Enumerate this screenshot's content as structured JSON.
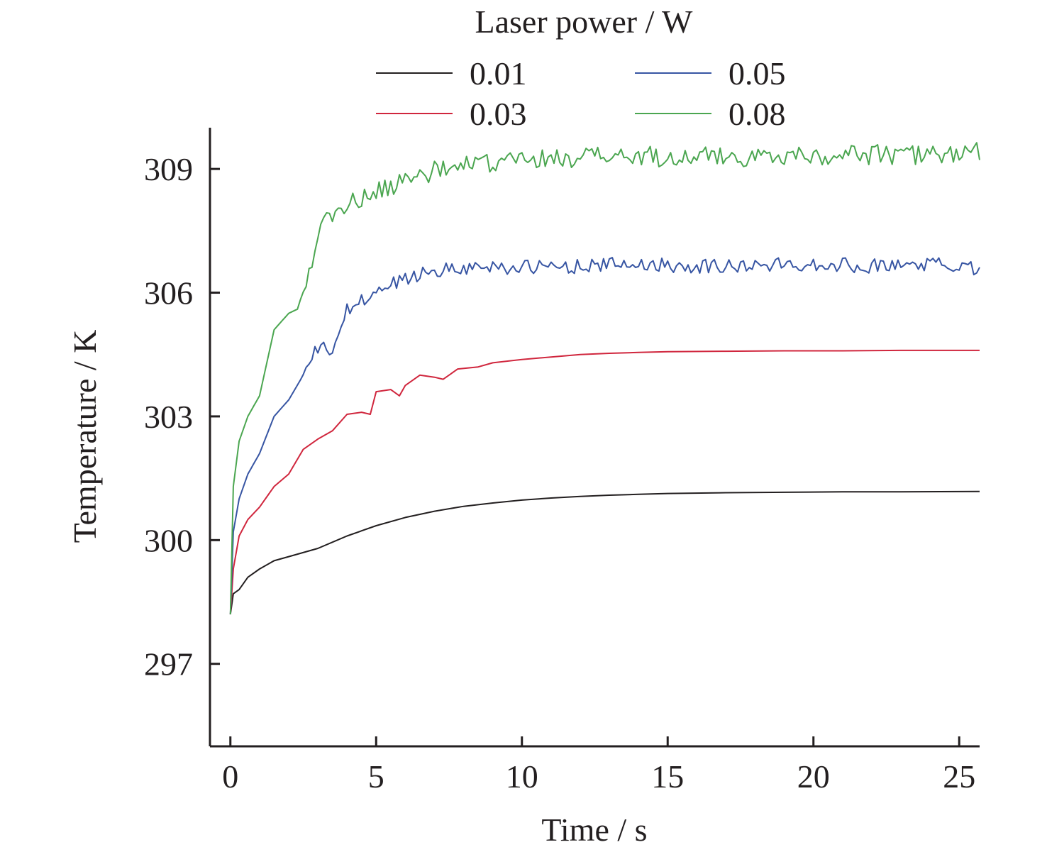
{
  "chart_data": {
    "type": "line",
    "xlabel": "Time / s",
    "ylabel": "Temperature / K",
    "xlim": [
      -0.7,
      25.7
    ],
    "ylim": [
      295,
      310
    ],
    "x_ticks": [
      0,
      5,
      10,
      15,
      20,
      25
    ],
    "x_tick_labels": [
      "0",
      "5",
      "10",
      "15",
      "20",
      "25"
    ],
    "y_ticks": [
      297,
      300,
      303,
      306,
      309
    ],
    "y_tick_labels": [
      "297",
      "300",
      "303",
      "306",
      "309"
    ],
    "grid": false,
    "legend": {
      "title": "Laser power / W",
      "placement": "top",
      "columns": 2
    },
    "series": [
      {
        "name": "0.01",
        "color": "#231f20",
        "points": [
          [
            0,
            298.2
          ],
          [
            0.1,
            298.7
          ],
          [
            0.3,
            298.8
          ],
          [
            0.6,
            299.1
          ],
          [
            1,
            299.3
          ],
          [
            1.5,
            299.5
          ],
          [
            2,
            299.6
          ],
          [
            3,
            299.8
          ],
          [
            4,
            300.1
          ],
          [
            5,
            300.35
          ],
          [
            6,
            300.55
          ],
          [
            7,
            300.7
          ],
          [
            8,
            300.82
          ],
          [
            9,
            300.9
          ],
          [
            10,
            300.97
          ],
          [
            11,
            301.02
          ],
          [
            12,
            301.06
          ],
          [
            13,
            301.09
          ],
          [
            14,
            301.11
          ],
          [
            15,
            301.13
          ],
          [
            17,
            301.15
          ],
          [
            19,
            301.16
          ],
          [
            21,
            301.17
          ],
          [
            23,
            301.17
          ],
          [
            25.7,
            301.18
          ]
        ]
      },
      {
        "name": "0.03",
        "color": "#d0263d",
        "points": [
          [
            0,
            298.2
          ],
          [
            0.1,
            299.3
          ],
          [
            0.3,
            300.1
          ],
          [
            0.6,
            300.5
          ],
          [
            1,
            300.8
          ],
          [
            1.5,
            301.3
          ],
          [
            2,
            301.6
          ],
          [
            2.5,
            302.2
          ],
          [
            3,
            302.45
          ],
          [
            3.5,
            302.65
          ],
          [
            4,
            303.05
          ],
          [
            4.5,
            303.1
          ],
          [
            4.8,
            303.05
          ],
          [
            5,
            303.6
          ],
          [
            5.5,
            303.65
          ],
          [
            5.8,
            303.5
          ],
          [
            6,
            303.75
          ],
          [
            6.5,
            304.0
          ],
          [
            7,
            303.95
          ],
          [
            7.3,
            303.9
          ],
          [
            7.8,
            304.15
          ],
          [
            8.5,
            304.2
          ],
          [
            9,
            304.3
          ],
          [
            10,
            304.38
          ],
          [
            11,
            304.44
          ],
          [
            12,
            304.5
          ],
          [
            13,
            304.53
          ],
          [
            14,
            304.55
          ],
          [
            15,
            304.57
          ],
          [
            17,
            304.58
          ],
          [
            19,
            304.59
          ],
          [
            21,
            304.59
          ],
          [
            23,
            304.6
          ],
          [
            25.7,
            304.6
          ]
        ]
      },
      {
        "name": "0.05",
        "color": "#3755a3",
        "noise": 0.18,
        "points": [
          [
            0,
            298.2
          ],
          [
            0.1,
            300.2
          ],
          [
            0.3,
            301.0
          ],
          [
            0.6,
            301.6
          ],
          [
            1,
            302.1
          ],
          [
            1.5,
            303.0
          ],
          [
            2,
            303.4
          ],
          [
            2.5,
            304.0
          ],
          [
            3,
            304.65
          ],
          [
            3.5,
            304.6
          ],
          [
            3.8,
            305.2
          ],
          [
            4,
            305.55
          ],
          [
            4.5,
            305.8
          ],
          [
            5,
            306.0
          ],
          [
            5.5,
            306.2
          ],
          [
            6,
            306.35
          ],
          [
            7,
            306.55
          ],
          [
            8,
            306.6
          ],
          [
            9,
            306.65
          ],
          [
            10,
            306.6
          ],
          [
            12,
            306.65
          ],
          [
            14,
            306.7
          ],
          [
            16,
            306.65
          ],
          [
            18,
            306.65
          ],
          [
            20,
            306.7
          ],
          [
            22,
            306.65
          ],
          [
            24,
            306.7
          ],
          [
            25.7,
            306.6
          ]
        ]
      },
      {
        "name": "0.08",
        "color": "#4ba650",
        "noise": 0.25,
        "points": [
          [
            0,
            298.2
          ],
          [
            0.1,
            301.3
          ],
          [
            0.3,
            302.4
          ],
          [
            0.6,
            303.0
          ],
          [
            1,
            303.5
          ],
          [
            1.5,
            305.1
          ],
          [
            2,
            305.5
          ],
          [
            2.3,
            305.6
          ],
          [
            2.7,
            306.5
          ],
          [
            3,
            307.5
          ],
          [
            3.5,
            307.9
          ],
          [
            4,
            308.15
          ],
          [
            5,
            308.4
          ],
          [
            6,
            308.75
          ],
          [
            7,
            308.95
          ],
          [
            8,
            309.05
          ],
          [
            9,
            309.15
          ],
          [
            10,
            309.2
          ],
          [
            12,
            309.3
          ],
          [
            14,
            309.3
          ],
          [
            16,
            309.3
          ],
          [
            18,
            309.3
          ],
          [
            20,
            309.35
          ],
          [
            22,
            309.35
          ],
          [
            24,
            309.35
          ],
          [
            25.7,
            309.4
          ]
        ]
      }
    ]
  }
}
